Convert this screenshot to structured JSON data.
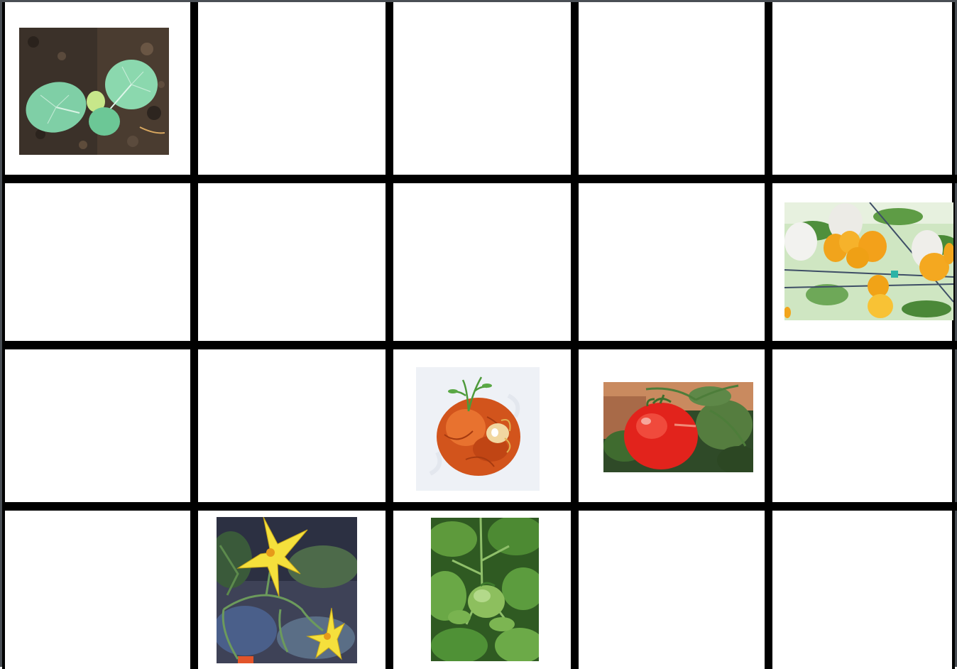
{
  "board": {
    "rows": 4,
    "cols": 5,
    "pictures": [
      {
        "slot": "r1c1",
        "subject": "cabbage-seedling"
      },
      {
        "slot": "r2c5",
        "subject": "white-and-yellow-eggplants"
      },
      {
        "slot": "r3c3",
        "subject": "sprouting-rotten-tomato"
      },
      {
        "slot": "r3c4",
        "subject": "ripe-red-tomato"
      },
      {
        "slot": "r4c2",
        "subject": "yellow-tomato-flowers"
      },
      {
        "slot": "r4c3",
        "subject": "green-tomato-plant"
      }
    ]
  },
  "colors": {
    "grid_line": "#000000",
    "cell_background": "#ffffff",
    "frame": "#4a4f55"
  }
}
